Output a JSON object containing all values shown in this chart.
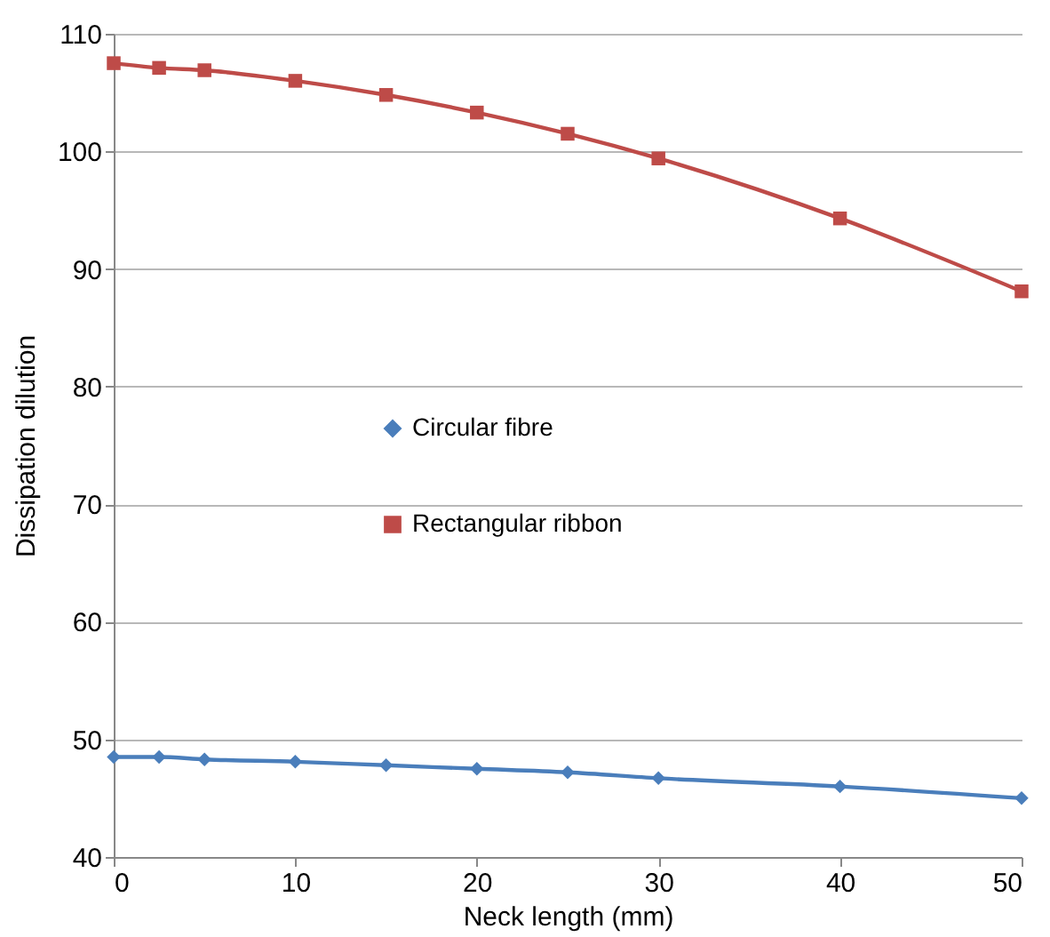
{
  "chart_data": {
    "type": "line",
    "xlabel": "Neck length (mm)",
    "ylabel": "Dissipation dilution",
    "x": [
      0,
      2.5,
      5,
      10,
      15,
      20,
      25,
      30,
      40,
      50
    ],
    "series": [
      {
        "name": "Circular fibre",
        "color": "#4a7ebb",
        "marker": "diamond",
        "values": [
          48.5,
          48.5,
          48.3,
          48.1,
          47.8,
          47.5,
          47.2,
          46.7,
          46.0,
          45.0
        ]
      },
      {
        "name": "Rectangular ribbon",
        "color": "#be4b48",
        "marker": "square",
        "values": [
          107.5,
          107.1,
          106.9,
          106.0,
          104.8,
          103.3,
          101.5,
          99.4,
          94.3,
          88.1
        ]
      }
    ],
    "xlim": [
      0,
      50
    ],
    "xticks": [
      0,
      10,
      20,
      30,
      40,
      50
    ],
    "ylim": [
      40,
      110
    ],
    "yticks": [
      40,
      50,
      60,
      70,
      80,
      90,
      100,
      110
    ],
    "grid": "y",
    "legend": "left",
    "line_style": "solid"
  }
}
